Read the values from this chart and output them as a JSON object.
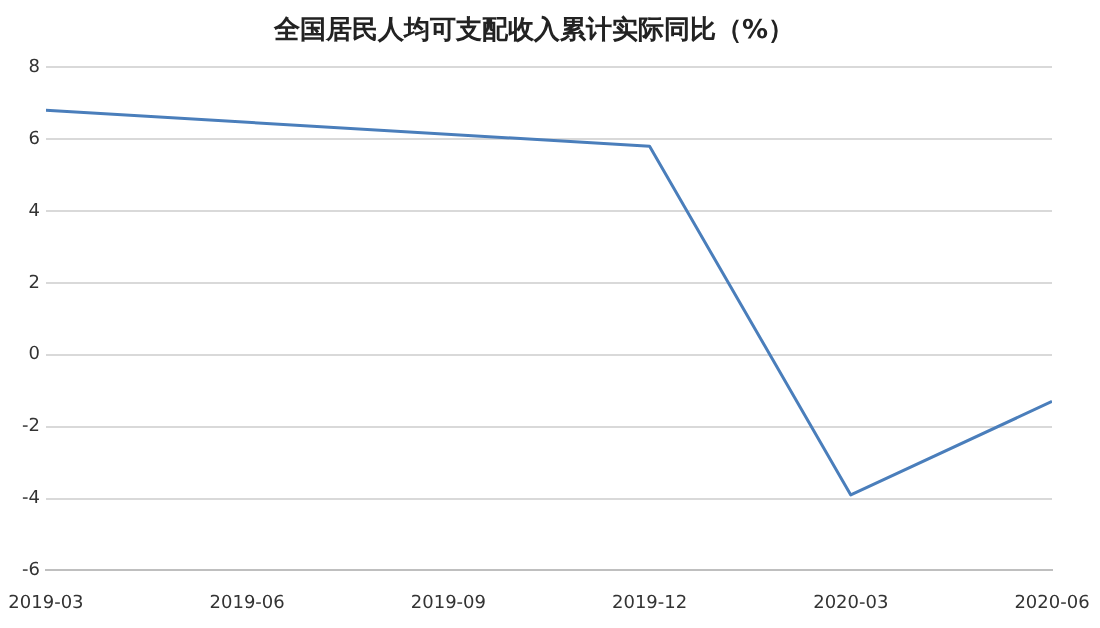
{
  "chart_data": {
    "type": "line",
    "title": "全国居民人均可支配收入累计实际同比（%）",
    "x": [
      "2019-03",
      "2019-12",
      "2020-03",
      "2020-06"
    ],
    "series": [
      {
        "color": "#4a7ebb",
        "values": [
          6.8,
          5.8,
          -3.9,
          -1.3
        ]
      }
    ],
    "xlim": [
      "2019-03",
      "2020-06"
    ],
    "xticks": [
      "2019-03",
      "2019-06",
      "2019-09",
      "2019-12",
      "2020-03",
      "2020-06"
    ],
    "ylim": [
      -6,
      8
    ],
    "yticks": [
      -6,
      -4,
      -2,
      0,
      2,
      4,
      6,
      8
    ],
    "grid": "y",
    "legend": false,
    "marker": "none",
    "line_style": "solid"
  }
}
